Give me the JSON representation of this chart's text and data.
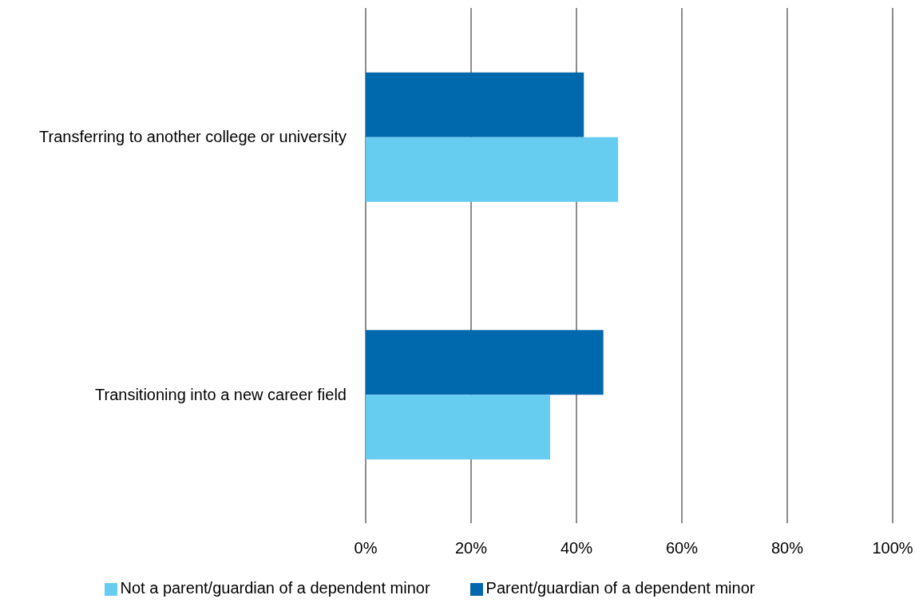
{
  "chart_data": {
    "type": "bar",
    "orientation": "horizontal",
    "categories": [
      "Transferring to another college or university",
      "Transitioning into a new career field"
    ],
    "series": [
      {
        "name": "Parent/guardian of a dependent minor",
        "color": "#0068ac",
        "values": [
          41.4,
          45.1
        ]
      },
      {
        "name": "Not a parent/guardian of a dependent minor",
        "color": "#66ccf0",
        "values": [
          47.9,
          35.0
        ]
      }
    ],
    "xlim": [
      0,
      100
    ],
    "xticks": [
      {
        "value": 0,
        "label": "0%"
      },
      {
        "value": 20,
        "label": "20%"
      },
      {
        "value": 40,
        "label": "40%"
      },
      {
        "value": 60,
        "label": "60%"
      },
      {
        "value": 80,
        "label": "80%"
      },
      {
        "value": 100,
        "label": "100%"
      }
    ],
    "grid": "x",
    "legend": "bottom"
  }
}
